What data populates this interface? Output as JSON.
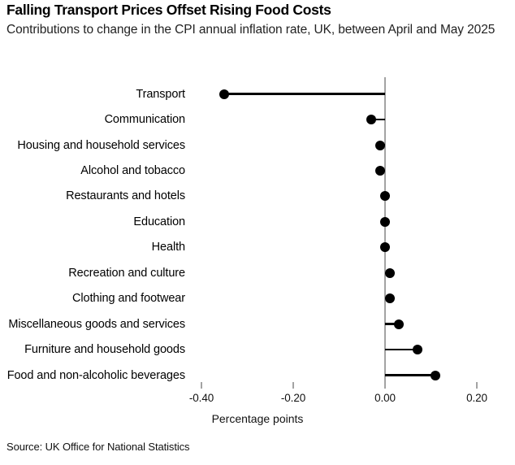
{
  "header": {
    "title": "Falling Transport Prices Offset Rising Food Costs",
    "subtitle": "Contributions to change in the CPI annual inflation rate, UK, between April and May 2025"
  },
  "footer": {
    "source": "Source: UK Office for National Statistics"
  },
  "chart_data": {
    "type": "lollipop",
    "orientation": "horizontal",
    "title": "Falling Transport Prices Offset Rising Food Costs",
    "subtitle": "Contributions to change in the CPI annual inflation rate, UK, between April and May 2025",
    "categories": [
      "Transport",
      "Communication",
      "Housing and household services",
      "Alcohol and tobacco",
      "Restaurants and hotels",
      "Education",
      "Health",
      "Recreation and culture",
      "Clothing and footwear",
      "Miscellaneous goods and services",
      "Furniture and household goods",
      "Food and non-alcoholic beverages"
    ],
    "values": [
      -0.35,
      -0.03,
      -0.01,
      -0.01,
      0.0,
      0.0,
      0.0,
      0.01,
      0.01,
      0.03,
      0.07,
      0.11
    ],
    "xlabel": "Percentage points",
    "x_ticks": [
      -0.4,
      -0.2,
      0.0,
      0.2
    ],
    "x_tick_labels": [
      "-0.40",
      "-0.20",
      "0.00",
      "0.20"
    ],
    "xlim": [
      -0.44,
      0.28
    ],
    "grid": false,
    "legend": false,
    "colors": {
      "dot": "#000000",
      "stem": "#000000",
      "zero_line": "#a3a3a3",
      "tick": "#a3a3a3",
      "text": "#000000"
    }
  }
}
